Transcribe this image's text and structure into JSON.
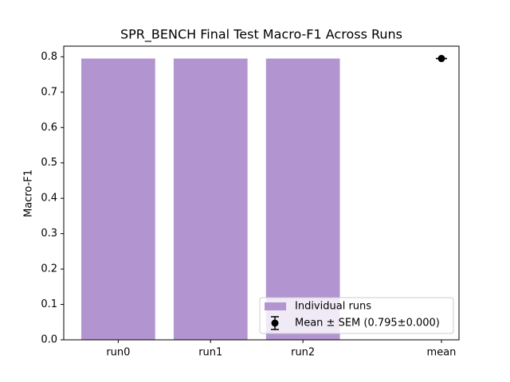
{
  "chart_data": {
    "type": "bar",
    "title": "SPR_BENCH Final Test Macro-F1 Across Runs",
    "ylabel": "Macro-F1",
    "xlim": [
      -0.59,
      3.69
    ],
    "xticks": [
      {
        "value": 0,
        "label": "run0"
      },
      {
        "value": 1,
        "label": "run1"
      },
      {
        "value": 2,
        "label": "run2"
      },
      {
        "value": 3.5,
        "label": "mean"
      }
    ],
    "ylim": [
      0,
      0.83
    ],
    "yticks": [
      {
        "value": 0,
        "label": "0.0"
      },
      0.1,
      0.2,
      0.3,
      0.4,
      0.5,
      0.6,
      0.7,
      0.8
    ],
    "legend": "lower right",
    "series": [
      {
        "name": "Individual runs",
        "type": "bar",
        "color": "#b294d0",
        "x": [
          0,
          1,
          2
        ],
        "values": [
          0.795,
          0.795,
          0.795
        ]
      },
      {
        "name": "Mean ± SEM (0.795±0.000)",
        "type": "errorbar",
        "color": "#000000",
        "x": [
          3.5
        ],
        "values": [
          0.795
        ],
        "errors": [
          0
        ]
      }
    ]
  }
}
